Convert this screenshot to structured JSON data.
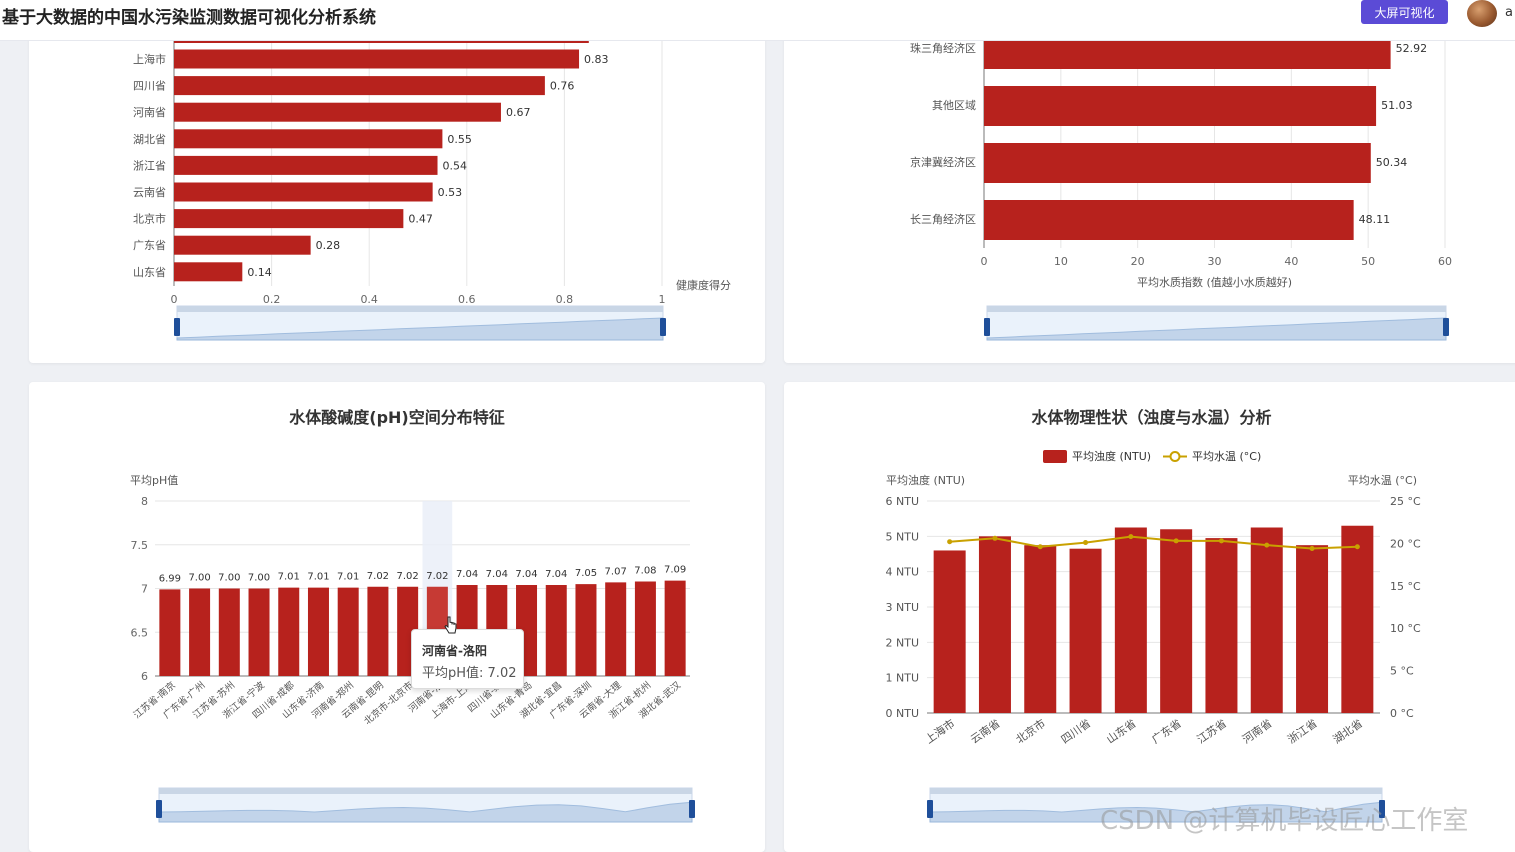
{
  "header": {
    "title": "基于大数据的中国水污染监测数据可视化分析系统",
    "big_screen_button": "大屏可视化",
    "user_name": "a"
  },
  "colors": {
    "bar": "#b7221d",
    "line": "#c9a100",
    "accent": "#5b4bd6",
    "zoom_handle": "#1f4f9a"
  },
  "chart_data": [
    {
      "id": "health",
      "type": "bar",
      "orientation": "horizontal",
      "categories": [
        "上海市",
        "四川省",
        "河南省",
        "湖北省",
        "浙江省",
        "云南省",
        "北京市",
        "广东省",
        "山东省"
      ],
      "values": [
        0.83,
        0.76,
        0.67,
        0.55,
        0.54,
        0.53,
        0.47,
        0.28,
        0.14
      ],
      "partial_top_value": 0.85,
      "xlabel": "健康度得分",
      "xlim": [
        0,
        1
      ],
      "xticks": [
        "0",
        "0.2",
        "0.4",
        "0.6",
        "0.8",
        "1"
      ],
      "grid": true
    },
    {
      "id": "quality",
      "type": "bar",
      "orientation": "horizontal",
      "categories": [
        "珠三角经济区",
        "其他区域",
        "京津冀经济区",
        "长三角经济区"
      ],
      "values": [
        52.92,
        51.03,
        50.34,
        48.11
      ],
      "xlabel": "平均水质指数 (值越小水质越好)",
      "xlim": [
        0,
        60
      ],
      "xticks": [
        "0",
        "10",
        "20",
        "30",
        "40",
        "50",
        "60"
      ],
      "grid": true
    },
    {
      "id": "ph",
      "type": "bar",
      "title": "水体酸碱度(pH)空间分布特征",
      "ylabel": "平均pH值",
      "ylim": [
        6,
        8
      ],
      "yticks": [
        "8",
        "7.5",
        "7",
        "6.5",
        "6"
      ],
      "categories": [
        "江苏省-南京",
        "广东省-广州",
        "江苏省-苏州",
        "浙江省-宁波",
        "四川省-成都",
        "山东省-济南",
        "河南省-郑州",
        "云南省-昆明",
        "北京市-北京市",
        "河南省-洛阳",
        "上海市-上海",
        "四川省-绵阳",
        "山东省-青岛",
        "湖北省-宜昌",
        "广东省-深圳",
        "云南省-大理",
        "浙江省-杭州",
        "湖北省-武汉"
      ],
      "category_labels": [
        "江苏省-南京",
        "广东省-广州",
        "江苏省-苏州",
        "浙江省-宁波",
        "四川省-成都",
        "山东省-济南",
        "河南省-郑州",
        "云南省-昆明",
        "北京市-北京市",
        "河南省-洛",
        "上海市-上海",
        "四川省-绵",
        "山东省-青岛",
        "湖北省-宜昌",
        "广东省-深圳",
        "云南省-大理",
        "浙江省-杭州",
        "湖北省-武汉"
      ],
      "value_labels": [
        "6.99",
        "7.00",
        "7.00",
        "7.00",
        "7.01",
        "7.01",
        "7.01",
        "7.02",
        "7.02",
        "7.02",
        "7.04",
        "7.04",
        "7.04",
        "7.04",
        "7.05",
        "7.07",
        "7.08",
        "7.09"
      ],
      "values": [
        6.99,
        7.0,
        7.0,
        7.0,
        7.01,
        7.01,
        7.01,
        7.02,
        7.02,
        7.02,
        7.04,
        7.04,
        7.04,
        7.04,
        7.05,
        7.07,
        7.08,
        7.09
      ],
      "highlight_index": 9,
      "tooltip": {
        "title": "河南省-洛阳",
        "label": "平均pH值: 7.02"
      },
      "grid": true
    },
    {
      "id": "physical",
      "type": "bar+line",
      "title": "水体物理性状（浊度与水温）分析",
      "legend": [
        "平均浊度 (NTU)",
        "平均水温 (°C)"
      ],
      "ylabel_left": "平均浊度 (NTU)",
      "ylabel_right": "平均水温 (°C)",
      "ylim_left": [
        0,
        6
      ],
      "ylim_right": [
        0,
        25
      ],
      "yticks_left": [
        "6 NTU",
        "5 NTU",
        "4 NTU",
        "3 NTU",
        "2 NTU",
        "1 NTU",
        "0 NTU"
      ],
      "yticks_right": [
        "25 °C",
        "20 °C",
        "15 °C",
        "10 °C",
        "5 °C",
        "0 °C"
      ],
      "categories": [
        "上海市",
        "云南省",
        "北京市",
        "四川省",
        "山东省",
        "广东省",
        "江苏省",
        "河南省",
        "浙江省",
        "湖北省"
      ],
      "series": [
        {
          "name": "平均浊度 (NTU)",
          "type": "bar",
          "values": [
            4.6,
            5.0,
            4.75,
            4.65,
            5.25,
            5.2,
            4.95,
            5.25,
            4.75,
            5.3
          ]
        },
        {
          "name": "平均水温 (°C)",
          "type": "line",
          "values": [
            20.2,
            20.6,
            19.6,
            20.1,
            20.8,
            20.3,
            20.3,
            19.8,
            19.4,
            19.6
          ]
        }
      ],
      "grid": true
    }
  ],
  "watermark": "CSDN @计算机毕设匠心工作室"
}
